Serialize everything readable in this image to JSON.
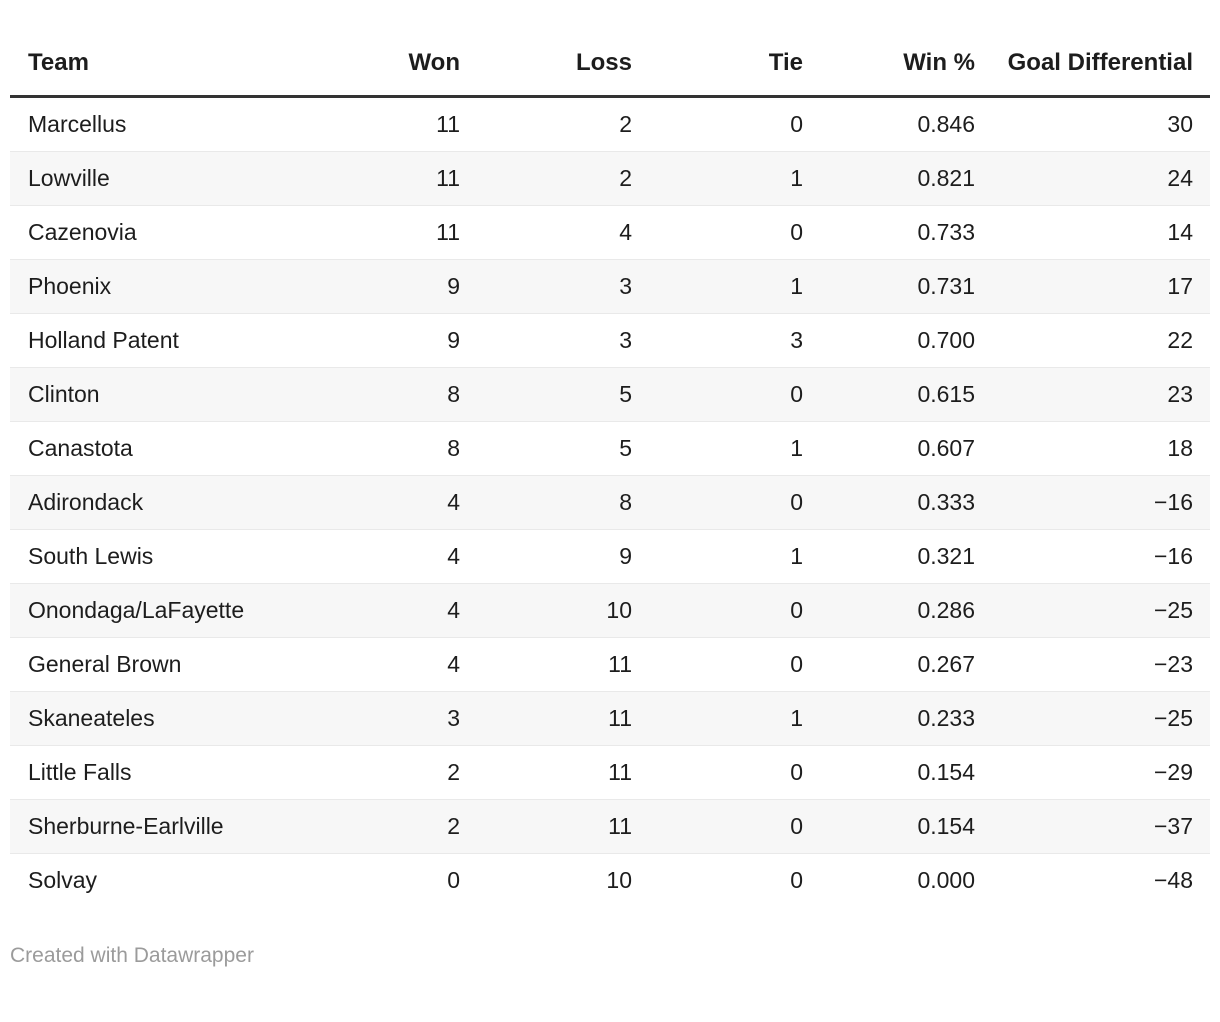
{
  "chart_data": {
    "type": "table",
    "columns": [
      "Team",
      "Won",
      "Loss",
      "Tie",
      "Win %",
      "Goal Differential"
    ],
    "rows": [
      {
        "team": "Marcellus",
        "won": "11",
        "loss": "2",
        "tie": "0",
        "win_pct": "0.846",
        "goal_diff": "30"
      },
      {
        "team": "Lowville",
        "won": "11",
        "loss": "2",
        "tie": "1",
        "win_pct": "0.821",
        "goal_diff": "24"
      },
      {
        "team": "Cazenovia",
        "won": "11",
        "loss": "4",
        "tie": "0",
        "win_pct": "0.733",
        "goal_diff": "14"
      },
      {
        "team": "Phoenix",
        "won": "9",
        "loss": "3",
        "tie": "1",
        "win_pct": "0.731",
        "goal_diff": "17"
      },
      {
        "team": "Holland Patent",
        "won": "9",
        "loss": "3",
        "tie": "3",
        "win_pct": "0.700",
        "goal_diff": "22"
      },
      {
        "team": "Clinton",
        "won": "8",
        "loss": "5",
        "tie": "0",
        "win_pct": "0.615",
        "goal_diff": "23"
      },
      {
        "team": "Canastota",
        "won": "8",
        "loss": "5",
        "tie": "1",
        "win_pct": "0.607",
        "goal_diff": "18"
      },
      {
        "team": "Adirondack",
        "won": "4",
        "loss": "8",
        "tie": "0",
        "win_pct": "0.333",
        "goal_diff": "−16"
      },
      {
        "team": "South Lewis",
        "won": "4",
        "loss": "9",
        "tie": "1",
        "win_pct": "0.321",
        "goal_diff": "−16"
      },
      {
        "team": "Onondaga/LaFayette",
        "won": "4",
        "loss": "10",
        "tie": "0",
        "win_pct": "0.286",
        "goal_diff": "−25"
      },
      {
        "team": "General Brown",
        "won": "4",
        "loss": "11",
        "tie": "0",
        "win_pct": "0.267",
        "goal_diff": "−23"
      },
      {
        "team": "Skaneateles",
        "won": "3",
        "loss": "11",
        "tie": "1",
        "win_pct": "0.233",
        "goal_diff": "−25"
      },
      {
        "team": "Little Falls",
        "won": "2",
        "loss": "11",
        "tie": "0",
        "win_pct": "0.154",
        "goal_diff": "−29"
      },
      {
        "team": "Sherburne-Earlville",
        "won": "2",
        "loss": "11",
        "tie": "0",
        "win_pct": "0.154",
        "goal_diff": "−37"
      },
      {
        "team": "Solvay",
        "won": "0",
        "loss": "10",
        "tie": "0",
        "win_pct": "0.000",
        "goal_diff": "−48"
      }
    ],
    "layout_hints": {
      "striped_rows": true,
      "header_rule_color": "#333333",
      "stripe_color": "#f7f7f7"
    }
  },
  "footer": {
    "attribution": "Created with Datawrapper"
  },
  "colors": {
    "text": "#1d1d1d",
    "stripe": "#f7f7f7",
    "row_border": "#e9e9e9",
    "header_rule": "#333333",
    "footer_text": "#9b9b9b"
  }
}
